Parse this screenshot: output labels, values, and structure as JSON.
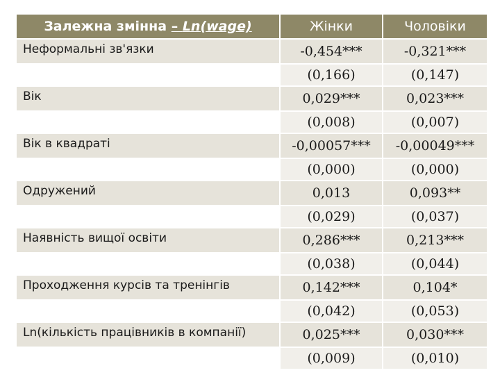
{
  "header": {
    "dependent_prefix": "Залежна змінна ",
    "dependent_sep": "– ",
    "dependent_var": "Ln(wage)",
    "col_women": "Жінки",
    "col_men": "Чоловіки"
  },
  "rows": [
    {
      "label": "Неформальні зв'язки",
      "women": "-0,454***",
      "men": "-0,321***",
      "women_se": "(0,166)",
      "men_se": "(0,147)"
    },
    {
      "label": "Вік",
      "women": "0,029***",
      "men": "0,023***",
      "women_se": "(0,008)",
      "men_se": "(0,007)"
    },
    {
      "label": "Вік в квадраті",
      "women": "-0,00057***",
      "men": "-0,00049***",
      "women_se": "(0,000)",
      "men_se": "(0,000)"
    },
    {
      "label": "Одружений",
      "women": "0,013",
      "men": "0,093**",
      "women_se": "(0,029)",
      "men_se": "(0,037)"
    },
    {
      "label": "Наявність вищої освіти",
      "women": "0,286***",
      "men": "0,213***",
      "women_se": "(0,038)",
      "men_se": "(0,044)"
    },
    {
      "label": "Проходження  курсів та тренінгів",
      "women": "0,142***",
      "men": "0,104*",
      "women_se": "(0,042)",
      "men_se": "(0,053)"
    },
    {
      "label": "Ln(кількість працівників в компанії)",
      "women": "0,025***",
      "men": "0,030***",
      "women_se": "(0,009)",
      "men_se": "(0,010)"
    }
  ]
}
